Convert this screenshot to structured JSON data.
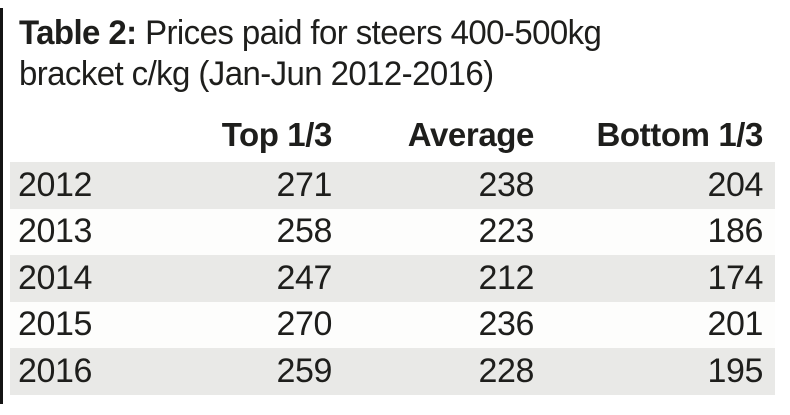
{
  "header": {
    "table_label": "Table 2:",
    "title_line1": " Prices paid for steers 400-500kg",
    "title_line2": "bracket c/kg (Jan-Jun 2012-2016)"
  },
  "colors": {
    "stripe": "#e9e9e7",
    "text": "#1e1e1c",
    "left_rule": "#141414"
  },
  "chart_data": {
    "type": "table",
    "title": "Table 2: Prices paid for steers 400-500kg bracket c/kg (Jan-Jun 2012-2016)",
    "columns": [
      "Top 1/3",
      "Average",
      "Bottom 1/3"
    ],
    "years": [
      "2012",
      "2013",
      "2014",
      "2015",
      "2016"
    ],
    "rows": [
      [
        271,
        238,
        204
      ],
      [
        258,
        223,
        186
      ],
      [
        247,
        212,
        174
      ],
      [
        270,
        236,
        201
      ],
      [
        259,
        228,
        195
      ]
    ]
  }
}
